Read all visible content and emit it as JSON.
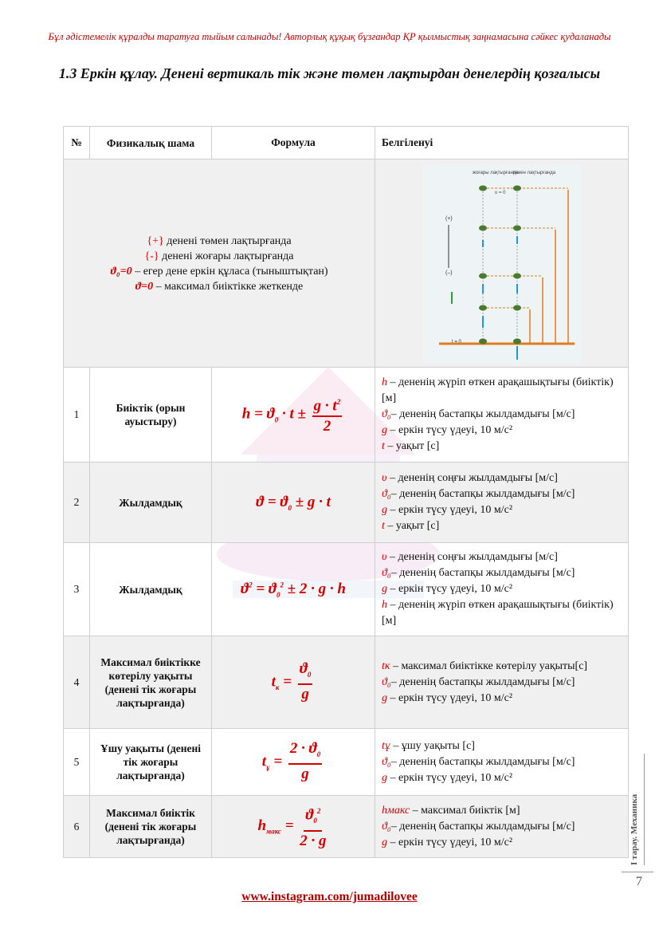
{
  "header": {
    "warning": "Бұл әдістемелік құралды таратуға тыйым салынады! Авторлық құқық бұзғандар ҚР қылмыстық заңнамасына сәйкес қудаланады",
    "title": "1.3 Еркін құлау. Денені вертикаль тік және төмен лақтырдан денелердің қозғалысы"
  },
  "table": {
    "headers": [
      "№",
      "Физикалық шама",
      "Формула",
      "Белгіленуі"
    ],
    "notes": [
      {
        "sym": "{+}",
        "text": " денені төмен лақтырғанда"
      },
      {
        "sym": "{-}",
        "text": " денені жоғары лақтырғанда"
      },
      {
        "sym": "ϑ₀=0",
        "text": " – егер дене еркін құласа (тыныштықтан)"
      },
      {
        "sym": "ϑ=0",
        "text": " – максимал биіктікке жеткенде"
      }
    ],
    "figure": {
      "col1": "жоғары лақтырғанда",
      "col2": "төмен лақтырғанда",
      "plus": "(+)",
      "minus": "(–)",
      "t0_label": "t = 0",
      "v0_label": "υ = 0"
    },
    "rows": [
      {
        "num": "1",
        "quantity": "Биіктік (орын ауыстыру)",
        "defs": [
          {
            "sym": "h",
            "text": " – дененің жүріп өткен арақашықтығы (биіктік) [м]"
          },
          {
            "sym": "ϑ₀",
            "text": "– дененің бастапқы жылдамдығы [м/с]"
          },
          {
            "sym": "g",
            "text": " – еркін түсу үдеуі, 10 м/с²"
          },
          {
            "sym": "t",
            "text": " – уақыт [с]"
          }
        ]
      },
      {
        "num": "2",
        "quantity": "Жылдамдық",
        "defs": [
          {
            "sym": "υ",
            "text": " – дененің соңғы жылдамдығы [м/с]"
          },
          {
            "sym": "ϑ₀",
            "text": "– дененің бастапқы жылдамдығы [м/с]"
          },
          {
            "sym": "g",
            "text": " – еркін түсу үдеуі, 10 м/с²"
          },
          {
            "sym": "t",
            "text": " – уақыт [с]"
          }
        ]
      },
      {
        "num": "3",
        "quantity": "Жылдамдық",
        "defs": [
          {
            "sym": "υ",
            "text": " – дененің соңғы жылдамдығы [м/с]"
          },
          {
            "sym": "ϑ₀",
            "text": "– дененің бастапқы жылдамдығы [м/с]"
          },
          {
            "sym": "g",
            "text": " – еркін түсу үдеуі, 10 м/с²"
          },
          {
            "sym": "h",
            "text": " – дененің жүріп өткен арақашықтығы (биіктік) [м]"
          }
        ]
      },
      {
        "num": "4",
        "quantity": "Максимал биіктікке көтерілу уақыты (денені тік жоғары лақтырғанда)",
        "defs": [
          {
            "sym": "tк",
            "text": " – максимал биіктікке көтерілу уақыты[с]"
          },
          {
            "sym": "ϑ₀",
            "text": "– дененің бастапқы жылдамдығы [м/с]"
          },
          {
            "sym": "g",
            "text": " – еркін түсу үдеуі, 10 м/с²"
          }
        ]
      },
      {
        "num": "5",
        "quantity": "Ұшу уақыты (денені тік жоғары лақтырғанда)",
        "defs": [
          {
            "sym": "tұ",
            "text": " – ұшу уақыты [с]"
          },
          {
            "sym": "ϑ₀",
            "text": "– дененің бастапқы жылдамдығы [м/с]"
          },
          {
            "sym": "g",
            "text": " – еркін түсу үдеуі, 10 м/с²"
          }
        ]
      },
      {
        "num": "6",
        "quantity": "Максимал биіктік (денені тік жоғары лақтырғанда)",
        "defs": [
          {
            "sym": "hмакс",
            "text": " – максимал биіктік [м]"
          },
          {
            "sym": "ϑ₀",
            "text": "– дененің бастапқы жылдамдығы [м/с]"
          },
          {
            "sym": "g",
            "text": " – еркін түсу үдеуі, 10 м/с²"
          }
        ]
      }
    ]
  },
  "sidebar": {
    "chapter": "I тарау. Механика"
  },
  "page_number": "7",
  "footer": {
    "link": "www.instagram.com/jumadilovee"
  }
}
